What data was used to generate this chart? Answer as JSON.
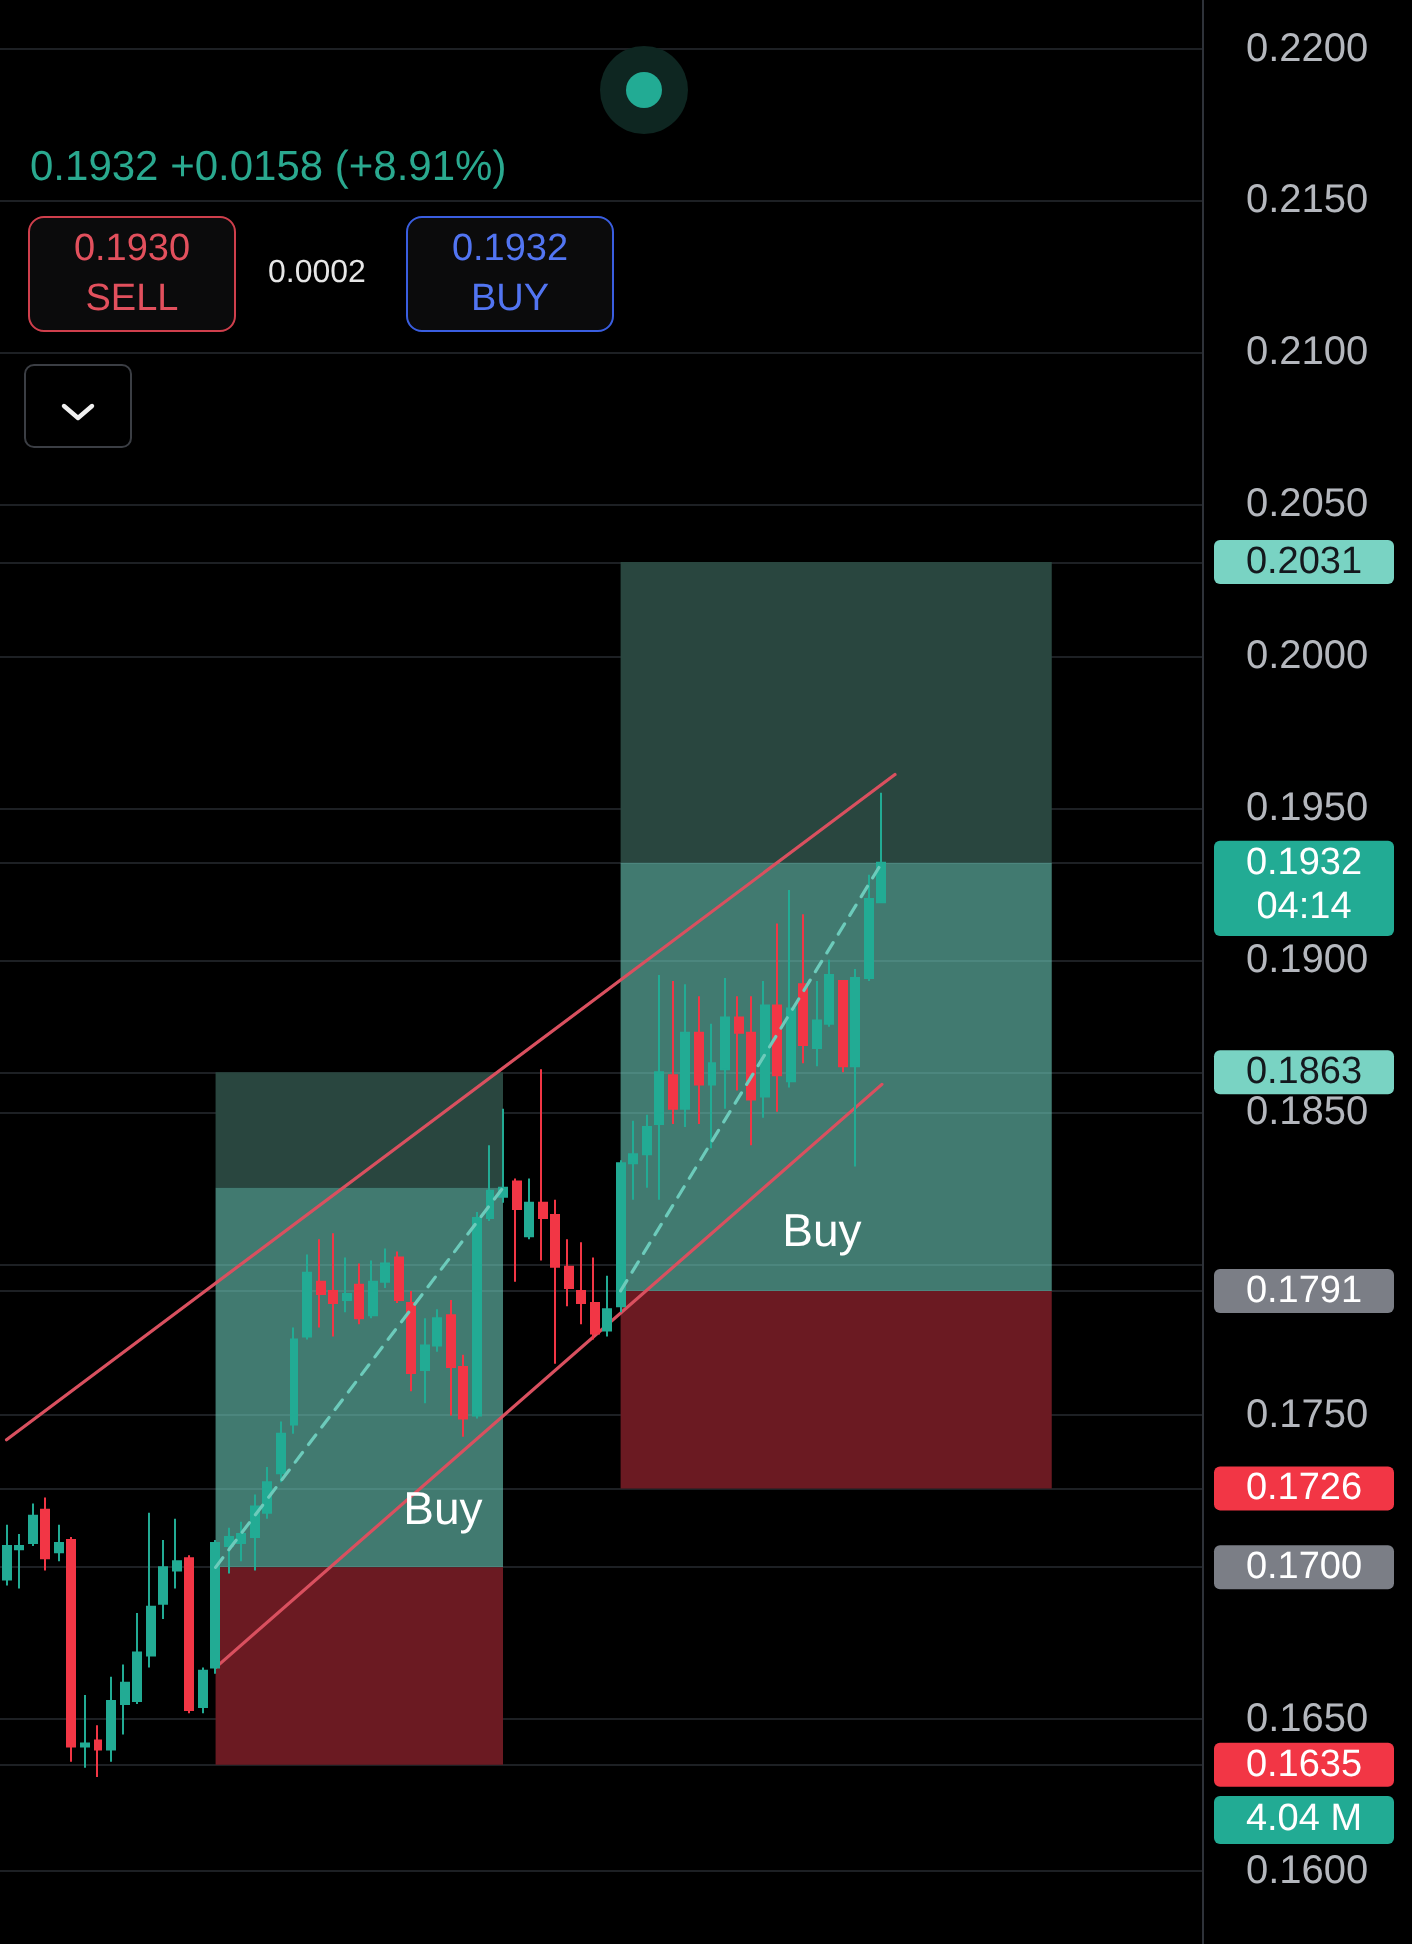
{
  "chart_data": {
    "type": "candlestick",
    "subtitle": "0.1932 +0.0158 (+8.91%)",
    "categories": [
      null,
      null,
      null,
      null,
      null,
      null,
      null,
      null,
      null,
      null,
      null,
      null,
      null,
      null,
      null,
      null,
      null,
      null,
      null,
      null,
      null,
      null,
      null,
      null,
      null,
      null,
      null,
      null,
      null,
      null,
      null,
      null,
      null,
      null,
      null,
      null,
      null,
      null,
      null,
      null,
      null,
      null,
      null,
      null,
      null,
      null,
      null,
      null,
      null,
      null,
      null,
      null,
      null,
      null,
      null,
      null,
      null,
      null,
      null,
      null,
      null,
      null,
      null,
      null,
      null,
      null,
      null,
      null,
      null,
      null,
      null,
      null,
      null,
      null,
      null,
      null,
      null,
      null,
      null,
      null,
      null,
      null,
      null,
      null,
      null,
      null,
      null,
      null,
      null,
      null,
      null,
      null
    ],
    "ohlc": [
      [
        0.1696,
        0.1714,
        0.1694,
        0.1707
      ],
      [
        0.1706,
        0.1711,
        0.1693,
        0.1707
      ],
      [
        0.1708,
        0.1721,
        0.1707,
        0.1717
      ],
      [
        0.1719,
        0.1723,
        0.1699,
        0.1703
      ],
      [
        0.1705,
        0.1714,
        0.1702,
        0.1708
      ],
      [
        0.1709,
        0.171,
        0.1636,
        0.1641
      ],
      [
        0.1641,
        0.1658,
        0.1634,
        0.1642
      ],
      [
        0.1643,
        0.1648,
        0.1631,
        0.164
      ],
      [
        0.164,
        0.1664,
        0.1636,
        0.1656
      ],
      [
        0.1655,
        0.1668,
        0.1645,
        0.1662
      ],
      [
        0.1656,
        0.1685,
        0.1655,
        0.1672
      ],
      [
        0.1671,
        0.1718,
        0.1667,
        0.1687
      ],
      [
        0.1688,
        0.1709,
        0.1683,
        0.17
      ],
      [
        0.1699,
        0.1716,
        0.1693,
        0.1702
      ],
      [
        0.1703,
        0.1704,
        0.1652,
        0.1653
      ],
      [
        0.1654,
        0.1667,
        0.1652,
        0.1666
      ],
      [
        0.1667,
        0.1709,
        0.1665,
        0.1708
      ],
      [
        0.1707,
        0.1713,
        0.1698,
        0.171
      ],
      [
        0.1708,
        0.1715,
        0.1702,
        0.1711
      ],
      [
        0.171,
        0.1724,
        0.1699,
        0.172
      ],
      [
        0.1718,
        0.1733,
        0.1716,
        0.1728
      ],
      [
        0.1731,
        0.1748,
        0.1728,
        0.1744
      ],
      [
        0.1747,
        0.1779,
        0.1744,
        0.1775
      ],
      [
        0.1776,
        0.1803,
        0.1775,
        0.1797
      ],
      [
        0.1794,
        0.1808,
        0.1779,
        0.179
      ],
      [
        0.1791,
        0.181,
        0.1776,
        0.1787
      ],
      [
        0.1788,
        0.1802,
        0.1784,
        0.179
      ],
      [
        0.1793,
        0.18,
        0.178,
        0.1782
      ],
      [
        0.1783,
        0.1801,
        0.1782,
        0.1794
      ],
      [
        0.1794,
        0.1805,
        0.1792,
        0.18
      ],
      [
        0.1802,
        0.1804,
        0.1787,
        0.1788
      ],
      [
        0.1787,
        0.1791,
        0.1758,
        0.1764
      ],
      [
        0.1765,
        0.1782,
        0.1754,
        0.1773
      ],
      [
        0.1773,
        0.1785,
        0.1771,
        0.1782
      ],
      [
        0.1783,
        0.1788,
        0.175,
        0.1766
      ],
      [
        0.1766,
        0.177,
        0.1743,
        0.1749
      ],
      [
        0.175,
        0.1817,
        0.1749,
        0.1815
      ],
      [
        0.1815,
        0.1839,
        0.1814,
        0.1824
      ],
      [
        0.1822,
        0.1851,
        0.182,
        0.1825
      ],
      [
        0.1827,
        0.1828,
        0.1794,
        0.1818
      ],
      [
        0.1809,
        0.1828,
        0.1808,
        0.182
      ],
      [
        0.182,
        0.1864,
        0.1801,
        0.1815
      ],
      [
        0.1816,
        0.1821,
        0.1767,
        0.1799
      ],
      [
        0.1799,
        0.1808,
        0.1786,
        0.1792
      ],
      [
        0.1791,
        0.1807,
        0.178,
        0.1787
      ],
      [
        0.1787,
        0.1802,
        0.1775,
        0.1777
      ],
      [
        0.1778,
        0.1796,
        0.1776,
        0.1785
      ],
      [
        0.1786,
        0.1834,
        0.1784,
        0.1833
      ],
      [
        0.1833,
        0.1847,
        0.1821,
        0.1836
      ],
      [
        0.1836,
        0.1849,
        0.1825,
        0.1845
      ],
      [
        0.1846,
        0.1895,
        0.1821,
        0.1863
      ],
      [
        0.1862,
        0.1893,
        0.1846,
        0.1851
      ],
      [
        0.1851,
        0.1892,
        0.1845,
        0.1876
      ],
      [
        0.1876,
        0.1888,
        0.1846,
        0.1859
      ],
      [
        0.1859,
        0.1879,
        0.1838,
        0.1866
      ],
      [
        0.1864,
        0.1894,
        0.1851,
        0.1881
      ],
      [
        0.1881,
        0.1888,
        0.1857,
        0.1876
      ],
      [
        0.1876,
        0.1888,
        0.1839,
        0.1854
      ],
      [
        0.1855,
        0.1893,
        0.1848,
        0.1885
      ],
      [
        0.1885,
        0.1912,
        0.185,
        0.1862
      ],
      [
        0.186,
        0.1923,
        0.1858,
        0.1884
      ],
      [
        0.1892,
        0.1915,
        0.1866,
        0.1872
      ],
      [
        0.1871,
        0.1893,
        0.1865,
        0.188
      ],
      [
        0.1879,
        0.19,
        0.1878,
        0.1895
      ],
      [
        0.1893,
        0.1893,
        0.1863,
        0.1865
      ],
      [
        0.1865,
        0.1897,
        0.1832,
        0.1894
      ],
      [
        0.1894,
        0.1928,
        0.1893,
        0.192
      ],
      [
        0.1919,
        0.1955,
        0.1919,
        0.1932
      ],
      null,
      null,
      null,
      null,
      null,
      null,
      null,
      null,
      null,
      null,
      null,
      null,
      null,
      null,
      null,
      null,
      null,
      null,
      null,
      null,
      null,
      null,
      null,
      null
    ],
    "ylim": [
      0.1576,
      0.2216
    ],
    "yticks": [
      {
        "value": 0.16,
        "label": "0.1600"
      },
      {
        "value": 0.1635,
        "label": "0.1635"
      },
      {
        "value": 0.165,
        "label": "0.1650"
      },
      {
        "value": 0.17,
        "label": "0.1700"
      },
      {
        "value": 0.1726,
        "label": "0.1726"
      },
      {
        "value": 0.175,
        "label": "0.1750"
      },
      {
        "value": 0.1791,
        "label": "0.1791"
      },
      {
        "value": 0.18,
        "label": null
      },
      {
        "value": 0.185,
        "label": "0.1850"
      },
      {
        "value": 0.1863,
        "label": "0.1863"
      },
      {
        "value": 0.19,
        "label": "0.1900"
      },
      {
        "value": 0.1932,
        "label": "0.1932"
      },
      {
        "value": 0.195,
        "label": "0.1950"
      },
      {
        "value": 0.2,
        "label": "0.2000"
      },
      {
        "value": 0.2031,
        "label": "0.2031"
      },
      {
        "value": 0.205,
        "label": "0.2050"
      },
      {
        "value": 0.21,
        "label": "0.2100"
      },
      {
        "value": 0.215,
        "label": "0.2150"
      },
      {
        "value": 0.22,
        "label": "0.2200"
      }
    ],
    "grid": "y",
    "tick_labels": "y",
    "series": [
      {
        "type": "line",
        "color": "#29463f",
        "values": [
          null,
          null,
          null,
          null,
          null,
          null,
          null,
          null,
          null,
          null,
          null,
          null,
          null,
          null,
          null,
          null,
          null,
          null,
          null,
          null,
          null,
          null,
          null,
          null,
          null,
          null,
          null,
          null,
          null,
          null,
          null,
          null,
          null,
          null,
          null,
          null,
          null,
          null,
          null,
          null,
          null,
          null,
          null,
          null,
          null,
          null,
          null,
          null,
          null,
          null,
          null,
          null,
          null,
          null,
          null,
          null,
          null,
          null,
          null,
          null,
          null,
          null,
          null,
          null,
          null,
          null,
          null,
          null,
          null,
          null,
          null,
          null,
          null,
          null,
          null,
          null,
          null,
          null,
          null,
          null,
          null,
          null,
          null,
          null,
          null,
          null,
          null,
          null,
          null,
          null,
          null,
          null
        ],
        "lower": [
          null,
          null,
          null,
          null,
          null,
          null,
          null,
          null,
          null,
          null,
          null,
          null,
          null,
          null,
          null,
          null,
          0.1825,
          0.1825,
          0.1825,
          0.1825,
          0.1825,
          0.1825,
          0.1825,
          0.1825,
          0.1825,
          0.1825,
          0.1825,
          0.1825,
          0.1825,
          0.1825,
          0.1825,
          0.1825,
          0.1825,
          0.1825,
          0.1825,
          0.1825,
          0.1825,
          0.1825,
          0.1825,
          null,
          null,
          null,
          null,
          null,
          null,
          null,
          null,
          null,
          null,
          null,
          null,
          null,
          null,
          null,
          null,
          null,
          null,
          null,
          null,
          null,
          null,
          null,
          null,
          null,
          null,
          null,
          null,
          null,
          null,
          null,
          null,
          null,
          null,
          null,
          null,
          null,
          null,
          null,
          null,
          null,
          null,
          null,
          null,
          null,
          null,
          null,
          null,
          null,
          null,
          null,
          null,
          null
        ],
        "upper": [
          null,
          null,
          null,
          null,
          null,
          null,
          null,
          null,
          null,
          null,
          null,
          null,
          null,
          null,
          null,
          null,
          0.1863,
          0.1863,
          0.1863,
          0.1863,
          0.1863,
          0.1863,
          0.1863,
          0.1863,
          0.1863,
          0.1863,
          0.1863,
          0.1863,
          0.1863,
          0.1863,
          0.1863,
          0.1863,
          0.1863,
          0.1863,
          0.1863,
          0.1863,
          0.1863,
          0.1863,
          0.1863,
          null,
          null,
          null,
          null,
          null,
          null,
          null,
          null,
          null,
          null,
          null,
          null,
          null,
          null,
          null,
          null,
          null,
          null,
          null,
          null,
          null,
          null,
          null,
          null,
          null,
          null,
          null,
          null,
          null,
          null,
          null,
          null,
          null,
          null,
          null,
          null,
          null,
          null,
          null,
          null,
          null,
          null,
          null,
          null,
          null,
          null,
          null,
          null,
          null,
          null,
          null,
          null,
          null
        ]
      },
      {
        "type": "line",
        "name": "Buy",
        "color": "#6ccbbb",
        "line_style": "dashed",
        "values": [
          null,
          null,
          null,
          null,
          null,
          null,
          null,
          null,
          null,
          null,
          null,
          null,
          null,
          null,
          null,
          null,
          0.17,
          null,
          null,
          null,
          null,
          null,
          null,
          null,
          null,
          null,
          null,
          null,
          null,
          null,
          null,
          null,
          null,
          null,
          null,
          null,
          null,
          null,
          0.1825,
          null,
          null,
          null,
          null,
          null,
          null,
          null,
          null,
          null,
          null,
          null,
          null,
          null,
          null,
          null,
          null,
          null,
          null,
          null,
          null,
          null,
          null,
          null,
          null,
          null,
          null,
          null,
          null,
          null,
          null,
          null,
          null,
          null,
          null,
          null,
          null,
          null,
          null,
          null,
          null,
          null,
          null,
          null,
          null,
          null,
          null,
          null,
          null,
          null,
          null,
          null,
          null,
          null
        ],
        "lower": [
          null,
          null,
          null,
          null,
          null,
          null,
          null,
          null,
          null,
          null,
          null,
          null,
          null,
          null,
          null,
          null,
          0.17,
          0.17,
          0.17,
          0.17,
          0.17,
          0.17,
          0.17,
          0.17,
          0.17,
          0.17,
          0.17,
          0.17,
          0.17,
          0.17,
          0.17,
          0.17,
          0.17,
          0.17,
          0.17,
          0.17,
          0.17,
          0.17,
          0.17,
          null,
          null,
          null,
          null,
          null,
          null,
          null,
          null,
          null,
          null,
          null,
          null,
          null,
          null,
          null,
          null,
          null,
          null,
          null,
          null,
          null,
          null,
          null,
          null,
          null,
          null,
          null,
          null,
          null,
          null,
          null,
          null,
          null,
          null,
          null,
          null,
          null,
          null,
          null,
          null,
          null,
          null,
          null,
          null,
          null,
          null,
          null,
          null,
          null,
          null,
          null,
          null,
          null
        ],
        "upper": [
          null,
          null,
          null,
          null,
          null,
          null,
          null,
          null,
          null,
          null,
          null,
          null,
          null,
          null,
          null,
          null,
          0.1825,
          0.1825,
          0.1825,
          0.1825,
          0.1825,
          0.1825,
          0.1825,
          0.1825,
          0.1825,
          0.1825,
          0.1825,
          0.1825,
          0.1825,
          0.1825,
          0.1825,
          0.1825,
          0.1825,
          0.1825,
          0.1825,
          0.1825,
          0.1825,
          0.1825,
          0.1825,
          null,
          null,
          null,
          null,
          null,
          null,
          null,
          null,
          null,
          null,
          null,
          null,
          null,
          null,
          null,
          null,
          null,
          null,
          null,
          null,
          null,
          null,
          null,
          null,
          null,
          null,
          null,
          null,
          null,
          null,
          null,
          null,
          null,
          null,
          null,
          null,
          null,
          null,
          null,
          null,
          null,
          null,
          null,
          null,
          null,
          null,
          null,
          null,
          null,
          null,
          null,
          null,
          null
        ]
      },
      {
        "type": "line",
        "color": "#6b1a22",
        "values": [
          null,
          null,
          null,
          null,
          null,
          null,
          null,
          null,
          null,
          null,
          null,
          null,
          null,
          null,
          null,
          null,
          null,
          null,
          null,
          null,
          null,
          null,
          null,
          null,
          null,
          null,
          null,
          null,
          null,
          null,
          null,
          null,
          null,
          null,
          null,
          null,
          null,
          null,
          null,
          null,
          null,
          null,
          null,
          null,
          null,
          null,
          null,
          null,
          null,
          null,
          null,
          null,
          null,
          null,
          null,
          null,
          null,
          null,
          null,
          null,
          null,
          null,
          null,
          null,
          null,
          null,
          null,
          null,
          null,
          null,
          null,
          null,
          null,
          null,
          null,
          null,
          null,
          null,
          null,
          null,
          null,
          null,
          null,
          null,
          null,
          null,
          null,
          null,
          null,
          null,
          null,
          null
        ],
        "lower": [
          null,
          null,
          null,
          null,
          null,
          null,
          null,
          null,
          null,
          null,
          null,
          null,
          null,
          null,
          null,
          null,
          0.1635,
          0.1635,
          0.1635,
          0.1635,
          0.1635,
          0.1635,
          0.1635,
          0.1635,
          0.1635,
          0.1635,
          0.1635,
          0.1635,
          0.1635,
          0.1635,
          0.1635,
          0.1635,
          0.1635,
          0.1635,
          0.1635,
          0.1635,
          0.1635,
          0.1635,
          0.1635,
          null,
          null,
          null,
          null,
          null,
          null,
          null,
          null,
          null,
          null,
          null,
          null,
          null,
          null,
          null,
          null,
          null,
          null,
          null,
          null,
          null,
          null,
          null,
          null,
          null,
          null,
          null,
          null,
          null,
          null,
          null,
          null,
          null,
          null,
          null,
          null,
          null,
          null,
          null,
          null,
          null,
          null,
          null,
          null,
          null,
          null,
          null,
          null,
          null,
          null,
          null,
          null,
          null
        ],
        "upper": [
          null,
          null,
          null,
          null,
          null,
          null,
          null,
          null,
          null,
          null,
          null,
          null,
          null,
          null,
          null,
          null,
          0.17,
          0.17,
          0.17,
          0.17,
          0.17,
          0.17,
          0.17,
          0.17,
          0.17,
          0.17,
          0.17,
          0.17,
          0.17,
          0.17,
          0.17,
          0.17,
          0.17,
          0.17,
          0.17,
          0.17,
          0.17,
          0.17,
          0.17,
          null,
          null,
          null,
          null,
          null,
          null,
          null,
          null,
          null,
          null,
          null,
          null,
          null,
          null,
          null,
          null,
          null,
          null,
          null,
          null,
          null,
          null,
          null,
          null,
          null,
          null,
          null,
          null,
          null,
          null,
          null,
          null,
          null,
          null,
          null,
          null,
          null,
          null,
          null,
          null,
          null,
          null,
          null,
          null,
          null,
          null,
          null,
          null,
          null,
          null,
          null,
          null,
          null
        ]
      },
      {
        "type": "line",
        "color": "#29463f",
        "values": [
          null,
          null,
          null,
          null,
          null,
          null,
          null,
          null,
          null,
          null,
          null,
          null,
          null,
          null,
          null,
          null,
          null,
          null,
          null,
          null,
          null,
          null,
          null,
          null,
          null,
          null,
          null,
          null,
          null,
          null,
          null,
          null,
          null,
          null,
          null,
          null,
          null,
          null,
          null,
          null,
          null,
          null,
          null,
          null,
          null,
          null,
          null,
          null,
          null,
          null,
          null,
          null,
          null,
          null,
          null,
          null,
          null,
          null,
          null,
          null,
          null,
          null,
          null,
          null,
          null,
          null,
          null,
          null,
          null,
          null,
          null,
          null,
          null,
          null,
          null,
          null,
          null,
          null,
          null,
          null,
          null,
          null,
          null,
          null,
          null,
          null,
          null,
          null,
          null,
          null,
          null,
          null
        ],
        "lower": [
          null,
          null,
          null,
          null,
          null,
          null,
          null,
          null,
          null,
          null,
          null,
          null,
          null,
          null,
          null,
          null,
          null,
          null,
          null,
          null,
          null,
          null,
          null,
          null,
          null,
          null,
          null,
          null,
          null,
          null,
          null,
          null,
          null,
          null,
          null,
          null,
          null,
          null,
          null,
          null,
          null,
          null,
          null,
          null,
          null,
          null,
          null,
          0.1932,
          0.1932,
          0.1932,
          0.1932,
          0.1932,
          0.1932,
          0.1932,
          0.1932,
          0.1932,
          0.1932,
          0.1932,
          0.1932,
          0.1932,
          0.1932,
          0.1932,
          0.1932,
          0.1932,
          0.1932,
          0.1932,
          0.1932,
          0.1932,
          0.1932,
          0.1932,
          0.1932,
          0.1932,
          0.1932,
          0.1932,
          0.1932,
          0.1932,
          0.1932,
          0.1932,
          0.1932,
          0.1932,
          0.1932,
          null,
          null,
          null,
          null,
          null,
          null,
          null,
          null,
          null,
          null,
          null
        ],
        "upper": [
          null,
          null,
          null,
          null,
          null,
          null,
          null,
          null,
          null,
          null,
          null,
          null,
          null,
          null,
          null,
          null,
          null,
          null,
          null,
          null,
          null,
          null,
          null,
          null,
          null,
          null,
          null,
          null,
          null,
          null,
          null,
          null,
          null,
          null,
          null,
          null,
          null,
          null,
          null,
          null,
          null,
          null,
          null,
          null,
          null,
          null,
          null,
          0.2031,
          0.2031,
          0.2031,
          0.2031,
          0.2031,
          0.2031,
          0.2031,
          0.2031,
          0.2031,
          0.2031,
          0.2031,
          0.2031,
          0.2031,
          0.2031,
          0.2031,
          0.2031,
          0.2031,
          0.2031,
          0.2031,
          0.2031,
          0.2031,
          0.2031,
          0.2031,
          0.2031,
          0.2031,
          0.2031,
          0.2031,
          0.2031,
          0.2031,
          0.2031,
          0.2031,
          0.2031,
          0.2031,
          0.2031,
          null,
          null,
          null,
          null,
          null,
          null,
          null,
          null,
          null,
          null,
          null
        ]
      },
      {
        "type": "line",
        "name": "Buy",
        "color": "#6ccbbb",
        "line_style": "dashed",
        "values": [
          null,
          null,
          null,
          null,
          null,
          null,
          null,
          null,
          null,
          null,
          null,
          null,
          null,
          null,
          null,
          null,
          null,
          null,
          null,
          null,
          null,
          null,
          null,
          null,
          null,
          null,
          null,
          null,
          null,
          null,
          null,
          null,
          null,
          null,
          null,
          null,
          null,
          null,
          null,
          null,
          null,
          null,
          null,
          null,
          null,
          null,
          null,
          0.1791,
          null,
          null,
          null,
          null,
          null,
          null,
          null,
          null,
          null,
          null,
          null,
          null,
          null,
          null,
          null,
          null,
          null,
          null,
          null,
          0.1932,
          null,
          null,
          null,
          null,
          null,
          null,
          null,
          null,
          null,
          null,
          null,
          null,
          null,
          null,
          null,
          null,
          null,
          null,
          null,
          null,
          null,
          null,
          null,
          null
        ],
        "lower": [
          null,
          null,
          null,
          null,
          null,
          null,
          null,
          null,
          null,
          null,
          null,
          null,
          null,
          null,
          null,
          null,
          null,
          null,
          null,
          null,
          null,
          null,
          null,
          null,
          null,
          null,
          null,
          null,
          null,
          null,
          null,
          null,
          null,
          null,
          null,
          null,
          null,
          null,
          null,
          null,
          null,
          null,
          null,
          null,
          null,
          null,
          null,
          0.1791,
          0.1791,
          0.1791,
          0.1791,
          0.1791,
          0.1791,
          0.1791,
          0.1791,
          0.1791,
          0.1791,
          0.1791,
          0.1791,
          0.1791,
          0.1791,
          0.1791,
          0.1791,
          0.1791,
          0.1791,
          0.1791,
          0.1791,
          0.1791,
          0.1791,
          0.1791,
          0.1791,
          0.1791,
          0.1791,
          0.1791,
          0.1791,
          0.1791,
          0.1791,
          0.1791,
          0.1791,
          0.1791,
          0.1791,
          null,
          null,
          null,
          null,
          null,
          null,
          null,
          null,
          null,
          null,
          null
        ],
        "upper": [
          null,
          null,
          null,
          null,
          null,
          null,
          null,
          null,
          null,
          null,
          null,
          null,
          null,
          null,
          null,
          null,
          null,
          null,
          null,
          null,
          null,
          null,
          null,
          null,
          null,
          null,
          null,
          null,
          null,
          null,
          null,
          null,
          null,
          null,
          null,
          null,
          null,
          null,
          null,
          null,
          null,
          null,
          null,
          null,
          null,
          null,
          null,
          0.1932,
          0.1932,
          0.1932,
          0.1932,
          0.1932,
          0.1932,
          0.1932,
          0.1932,
          0.1932,
          0.1932,
          0.1932,
          0.1932,
          0.1932,
          0.1932,
          0.1932,
          0.1932,
          0.1932,
          0.1932,
          0.1932,
          0.1932,
          0.1932,
          0.1932,
          0.1932,
          0.1932,
          0.1932,
          0.1932,
          0.1932,
          0.1932,
          0.1932,
          0.1932,
          0.1932,
          0.1932,
          0.1932,
          0.1932,
          null,
          null,
          null,
          null,
          null,
          null,
          null,
          null,
          null,
          null,
          null
        ]
      },
      {
        "type": "line",
        "color": "#6b1a22",
        "values": [
          null,
          null,
          null,
          null,
          null,
          null,
          null,
          null,
          null,
          null,
          null,
          null,
          null,
          null,
          null,
          null,
          null,
          null,
          null,
          null,
          null,
          null,
          null,
          null,
          null,
          null,
          null,
          null,
          null,
          null,
          null,
          null,
          null,
          null,
          null,
          null,
          null,
          null,
          null,
          null,
          null,
          null,
          null,
          null,
          null,
          null,
          null,
          null,
          null,
          null,
          null,
          null,
          null,
          null,
          null,
          null,
          null,
          null,
          null,
          null,
          null,
          null,
          null,
          null,
          null,
          null,
          null,
          null,
          null,
          null,
          null,
          null,
          null,
          null,
          null,
          null,
          null,
          null,
          null,
          null,
          null,
          null,
          null,
          null,
          null,
          null,
          null,
          null,
          null,
          null,
          null,
          null
        ],
        "lower": [
          null,
          null,
          null,
          null,
          null,
          null,
          null,
          null,
          null,
          null,
          null,
          null,
          null,
          null,
          null,
          null,
          null,
          null,
          null,
          null,
          null,
          null,
          null,
          null,
          null,
          null,
          null,
          null,
          null,
          null,
          null,
          null,
          null,
          null,
          null,
          null,
          null,
          null,
          null,
          null,
          null,
          null,
          null,
          null,
          null,
          null,
          null,
          0.1726,
          0.1726,
          0.1726,
          0.1726,
          0.1726,
          0.1726,
          0.1726,
          0.1726,
          0.1726,
          0.1726,
          0.1726,
          0.1726,
          0.1726,
          0.1726,
          0.1726,
          0.1726,
          0.1726,
          0.1726,
          0.1726,
          0.1726,
          0.1726,
          0.1726,
          0.1726,
          0.1726,
          0.1726,
          0.1726,
          0.1726,
          0.1726,
          0.1726,
          0.1726,
          0.1726,
          0.1726,
          0.1726,
          0.1726,
          null,
          null,
          null,
          null,
          null,
          null,
          null,
          null,
          null,
          null,
          null
        ],
        "upper": [
          null,
          null,
          null,
          null,
          null,
          null,
          null,
          null,
          null,
          null,
          null,
          null,
          null,
          null,
          null,
          null,
          null,
          null,
          null,
          null,
          null,
          null,
          null,
          null,
          null,
          null,
          null,
          null,
          null,
          null,
          null,
          null,
          null,
          null,
          null,
          null,
          null,
          null,
          null,
          null,
          null,
          null,
          null,
          null,
          null,
          null,
          null,
          0.1791,
          0.1791,
          0.1791,
          0.1791,
          0.1791,
          0.1791,
          0.1791,
          0.1791,
          0.1791,
          0.1791,
          0.1791,
          0.1791,
          0.1791,
          0.1791,
          0.1791,
          0.1791,
          0.1791,
          0.1791,
          0.1791,
          0.1791,
          0.1791,
          0.1791,
          0.1791,
          0.1791,
          0.1791,
          0.1791,
          0.1791,
          0.1791,
          0.1791,
          0.1791,
          0.1791,
          0.1791,
          0.1791,
          0.1791,
          null,
          null,
          null,
          null,
          null,
          null,
          null,
          null,
          null,
          null,
          null
        ]
      },
      {
        "type": "line",
        "color": "#d9505f",
        "values": [
          0.1742,
          null,
          null,
          null,
          null,
          null,
          null,
          null,
          null,
          null,
          null,
          null,
          null,
          null,
          null,
          null,
          null,
          null,
          null,
          null,
          null,
          null,
          null,
          null,
          null,
          null,
          null,
          null,
          null,
          null,
          null,
          null,
          null,
          null,
          null,
          null,
          null,
          null,
          null,
          null,
          null,
          null,
          null,
          null,
          null,
          null,
          null,
          null,
          null,
          null,
          null,
          null,
          null,
          null,
          null,
          null,
          null,
          null,
          null,
          null,
          null,
          null,
          null,
          null,
          null,
          null,
          null,
          null,
          0.1961,
          null,
          null,
          null,
          null,
          null,
          null,
          null,
          null,
          null,
          null,
          null,
          null,
          null,
          null,
          null,
          null,
          null,
          null,
          null,
          null,
          null,
          null,
          null
        ]
      },
      {
        "type": "line",
        "color": "#d9505f",
        "values": [
          null,
          null,
          null,
          null,
          null,
          null,
          null,
          null,
          null,
          null,
          null,
          null,
          null,
          null,
          null,
          null,
          0.1667,
          null,
          null,
          null,
          null,
          null,
          null,
          null,
          null,
          null,
          null,
          null,
          null,
          null,
          null,
          null,
          null,
          null,
          null,
          null,
          null,
          null,
          null,
          null,
          null,
          null,
          null,
          null,
          null,
          null,
          null,
          null,
          null,
          null,
          null,
          null,
          null,
          null,
          null,
          null,
          null,
          null,
          null,
          null,
          null,
          null,
          null,
          null,
          null,
          null,
          null,
          0.1859,
          null,
          null,
          null,
          null,
          null,
          null,
          null,
          null,
          null,
          null,
          null,
          null,
          null,
          null,
          null,
          null,
          null,
          null,
          null,
          null,
          null,
          null,
          null,
          null
        ]
      }
    ],
    "annotations": [
      "0.1930",
      "SELL",
      "0.0002",
      "0.1932",
      "BUY",
      "04:14",
      "4.04 M"
    ]
  }
}
